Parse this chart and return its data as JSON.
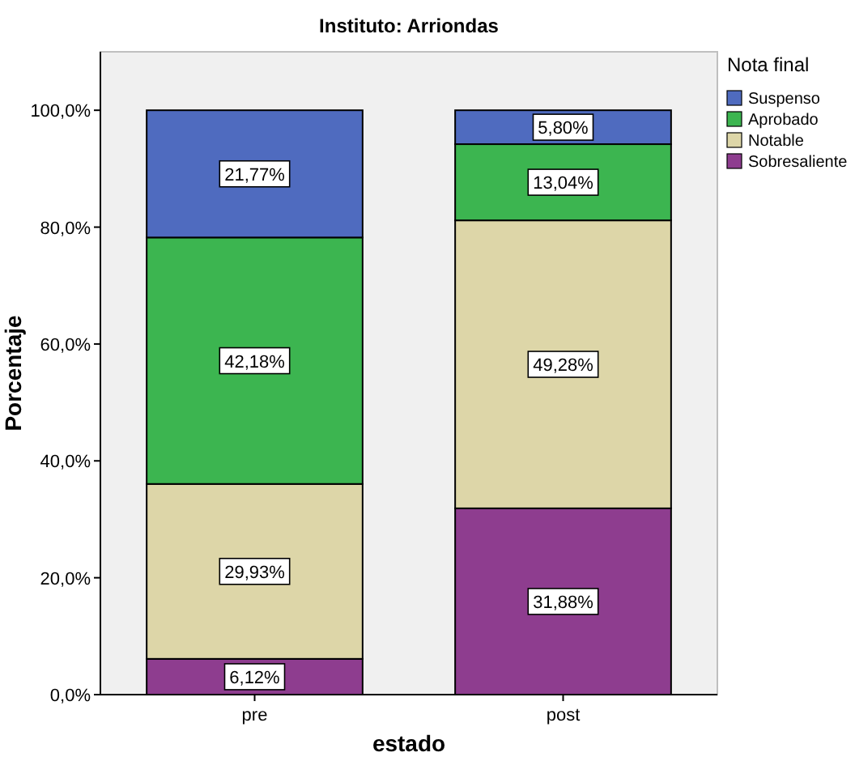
{
  "chart_data": {
    "type": "bar",
    "title": "Instituto: Arriondas",
    "xlabel": "estado",
    "ylabel": "Porcentaje",
    "legend_title": "Nota final",
    "categories": [
      "pre",
      "post"
    ],
    "stacked": true,
    "legend": "top right",
    "ylim": [
      0,
      110
    ],
    "yticks": [
      {
        "value": 0,
        "label": "0,0%"
      },
      {
        "value": 20,
        "label": "20,0%"
      },
      {
        "value": 40,
        "label": "40,0%"
      },
      {
        "value": 60,
        "label": "60,0%"
      },
      {
        "value": 80,
        "label": "80,0%"
      },
      {
        "value": 100,
        "label": "100,0%"
      }
    ],
    "series": [
      {
        "name": "Sobresaliente",
        "color": "#8e3d8f",
        "values": [
          6.12,
          31.88
        ],
        "value_labels": [
          "6,12%",
          "31,88%"
        ]
      },
      {
        "name": "Notable",
        "color": "#ddd6a8",
        "values": [
          29.93,
          49.28
        ],
        "value_labels": [
          "29,93%",
          "49,28%"
        ]
      },
      {
        "name": "Aprobado",
        "color": "#3cb550",
        "values": [
          42.18,
          13.04
        ],
        "value_labels": [
          "42,18%",
          "13,04%"
        ]
      },
      {
        "name": "Suspenso",
        "color": "#4f6bbf",
        "values": [
          21.77,
          5.8
        ],
        "value_labels": [
          "21,77%",
          "5,80%"
        ]
      }
    ]
  }
}
